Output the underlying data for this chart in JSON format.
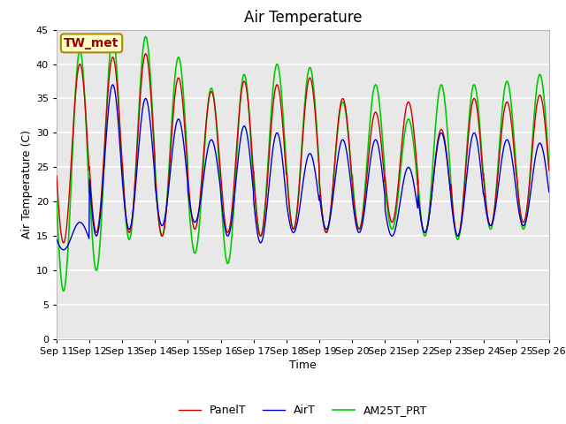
{
  "title": "Air Temperature",
  "xlabel": "Time",
  "ylabel": "Air Temperature (C)",
  "ylim": [
    0,
    45
  ],
  "yticks": [
    0,
    5,
    10,
    15,
    20,
    25,
    30,
    35,
    40,
    45
  ],
  "date_labels": [
    "Sep 11",
    "Sep 12",
    "Sep 13",
    "Sep 14",
    "Sep 15",
    "Sep 16",
    "Sep 17",
    "Sep 18",
    "Sep 19",
    "Sep 20",
    "Sep 21",
    "Sep 22",
    "Sep 23",
    "Sep 24",
    "Sep 25",
    "Sep 26"
  ],
  "annotation_text": "TW_met",
  "fig_bg_color": "#ffffff",
  "plot_bg_color": "#e8e8e8",
  "line_colors": {
    "PanelT": "#cc0000",
    "AirT": "#0000cc",
    "AM25T_PRT": "#00cc00"
  },
  "line_widths": {
    "PanelT": 1.0,
    "AirT": 1.0,
    "AM25T_PRT": 1.2
  },
  "grid_color": "#ffffff",
  "title_fontsize": 12,
  "axis_fontsize": 9,
  "tick_fontsize": 8,
  "legend_fontsize": 9,
  "days": 15,
  "pts_per_day": 96,
  "panel_peaks": [
    40.0,
    41.0,
    41.5,
    38.0,
    36.0,
    37.5,
    37.0,
    38.0,
    35.0,
    33.0,
    34.5,
    30.5,
    35.0,
    34.5,
    35.5
  ],
  "panel_mins": [
    14.0,
    15.5,
    15.5,
    15.0,
    16.0,
    15.5,
    15.0,
    16.0,
    15.5,
    16.0,
    17.0,
    15.5,
    15.0,
    16.5,
    17.0
  ],
  "air_peaks": [
    17.0,
    37.0,
    35.0,
    32.0,
    29.0,
    31.0,
    30.0,
    27.0,
    29.0,
    29.0,
    25.0,
    30.0,
    30.0,
    29.0,
    28.5
  ],
  "air_mins": [
    13.0,
    15.0,
    16.0,
    16.5,
    17.0,
    15.0,
    14.0,
    15.5,
    16.0,
    15.5,
    15.0,
    15.5,
    15.0,
    16.5,
    16.5
  ],
  "am25_peaks": [
    42.0,
    44.0,
    44.0,
    41.0,
    36.5,
    38.5,
    40.0,
    39.5,
    34.5,
    37.0,
    32.0,
    37.0,
    37.0,
    37.5,
    38.5
  ],
  "am25_mins": [
    7.0,
    10.0,
    14.5,
    15.0,
    12.5,
    11.0,
    15.0,
    16.0,
    15.5,
    16.0,
    16.0,
    15.0,
    14.5,
    16.0,
    16.0
  ]
}
